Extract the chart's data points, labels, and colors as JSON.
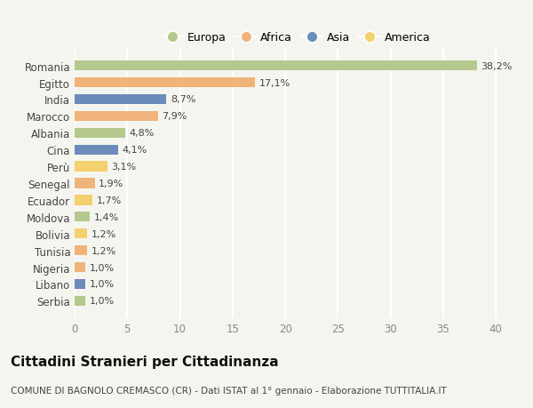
{
  "categories": [
    "Romania",
    "Egitto",
    "India",
    "Marocco",
    "Albania",
    "Cina",
    "Perù",
    "Senegal",
    "Ecuador",
    "Moldova",
    "Bolivia",
    "Tunisia",
    "Nigeria",
    "Libano",
    "Serbia"
  ],
  "values": [
    38.2,
    17.1,
    8.7,
    7.9,
    4.8,
    4.1,
    3.1,
    1.9,
    1.7,
    1.4,
    1.2,
    1.2,
    1.0,
    1.0,
    1.0
  ],
  "labels": [
    "38,2%",
    "17,1%",
    "8,7%",
    "7,9%",
    "4,8%",
    "4,1%",
    "3,1%",
    "1,9%",
    "1,7%",
    "1,4%",
    "1,2%",
    "1,2%",
    "1,0%",
    "1,0%",
    "1,0%"
  ],
  "continents": [
    "Europa",
    "Africa",
    "Asia",
    "Africa",
    "Europa",
    "Asia",
    "America",
    "Africa",
    "America",
    "Europa",
    "America",
    "Africa",
    "Africa",
    "Asia",
    "Europa"
  ],
  "colors": {
    "Europa": "#b5c98e",
    "Africa": "#f0b47a",
    "Asia": "#6b8cba",
    "America": "#f5d06e"
  },
  "legend_order": [
    "Europa",
    "Africa",
    "Asia",
    "America"
  ],
  "title": "Cittadini Stranieri per Cittadinanza",
  "subtitle": "COMUNE DI BAGNOLO CREMASCO (CR) - Dati ISTAT al 1° gennaio - Elaborazione TUTTITALIA.IT",
  "xlim": [
    0,
    42
  ],
  "xticks": [
    0,
    5,
    10,
    15,
    20,
    25,
    30,
    35,
    40
  ],
  "background_color": "#f5f5f0",
  "grid_color": "#ffffff",
  "bar_height": 0.6,
  "label_fontsize": 8,
  "tick_fontsize": 8.5,
  "title_fontsize": 11,
  "subtitle_fontsize": 7.5
}
